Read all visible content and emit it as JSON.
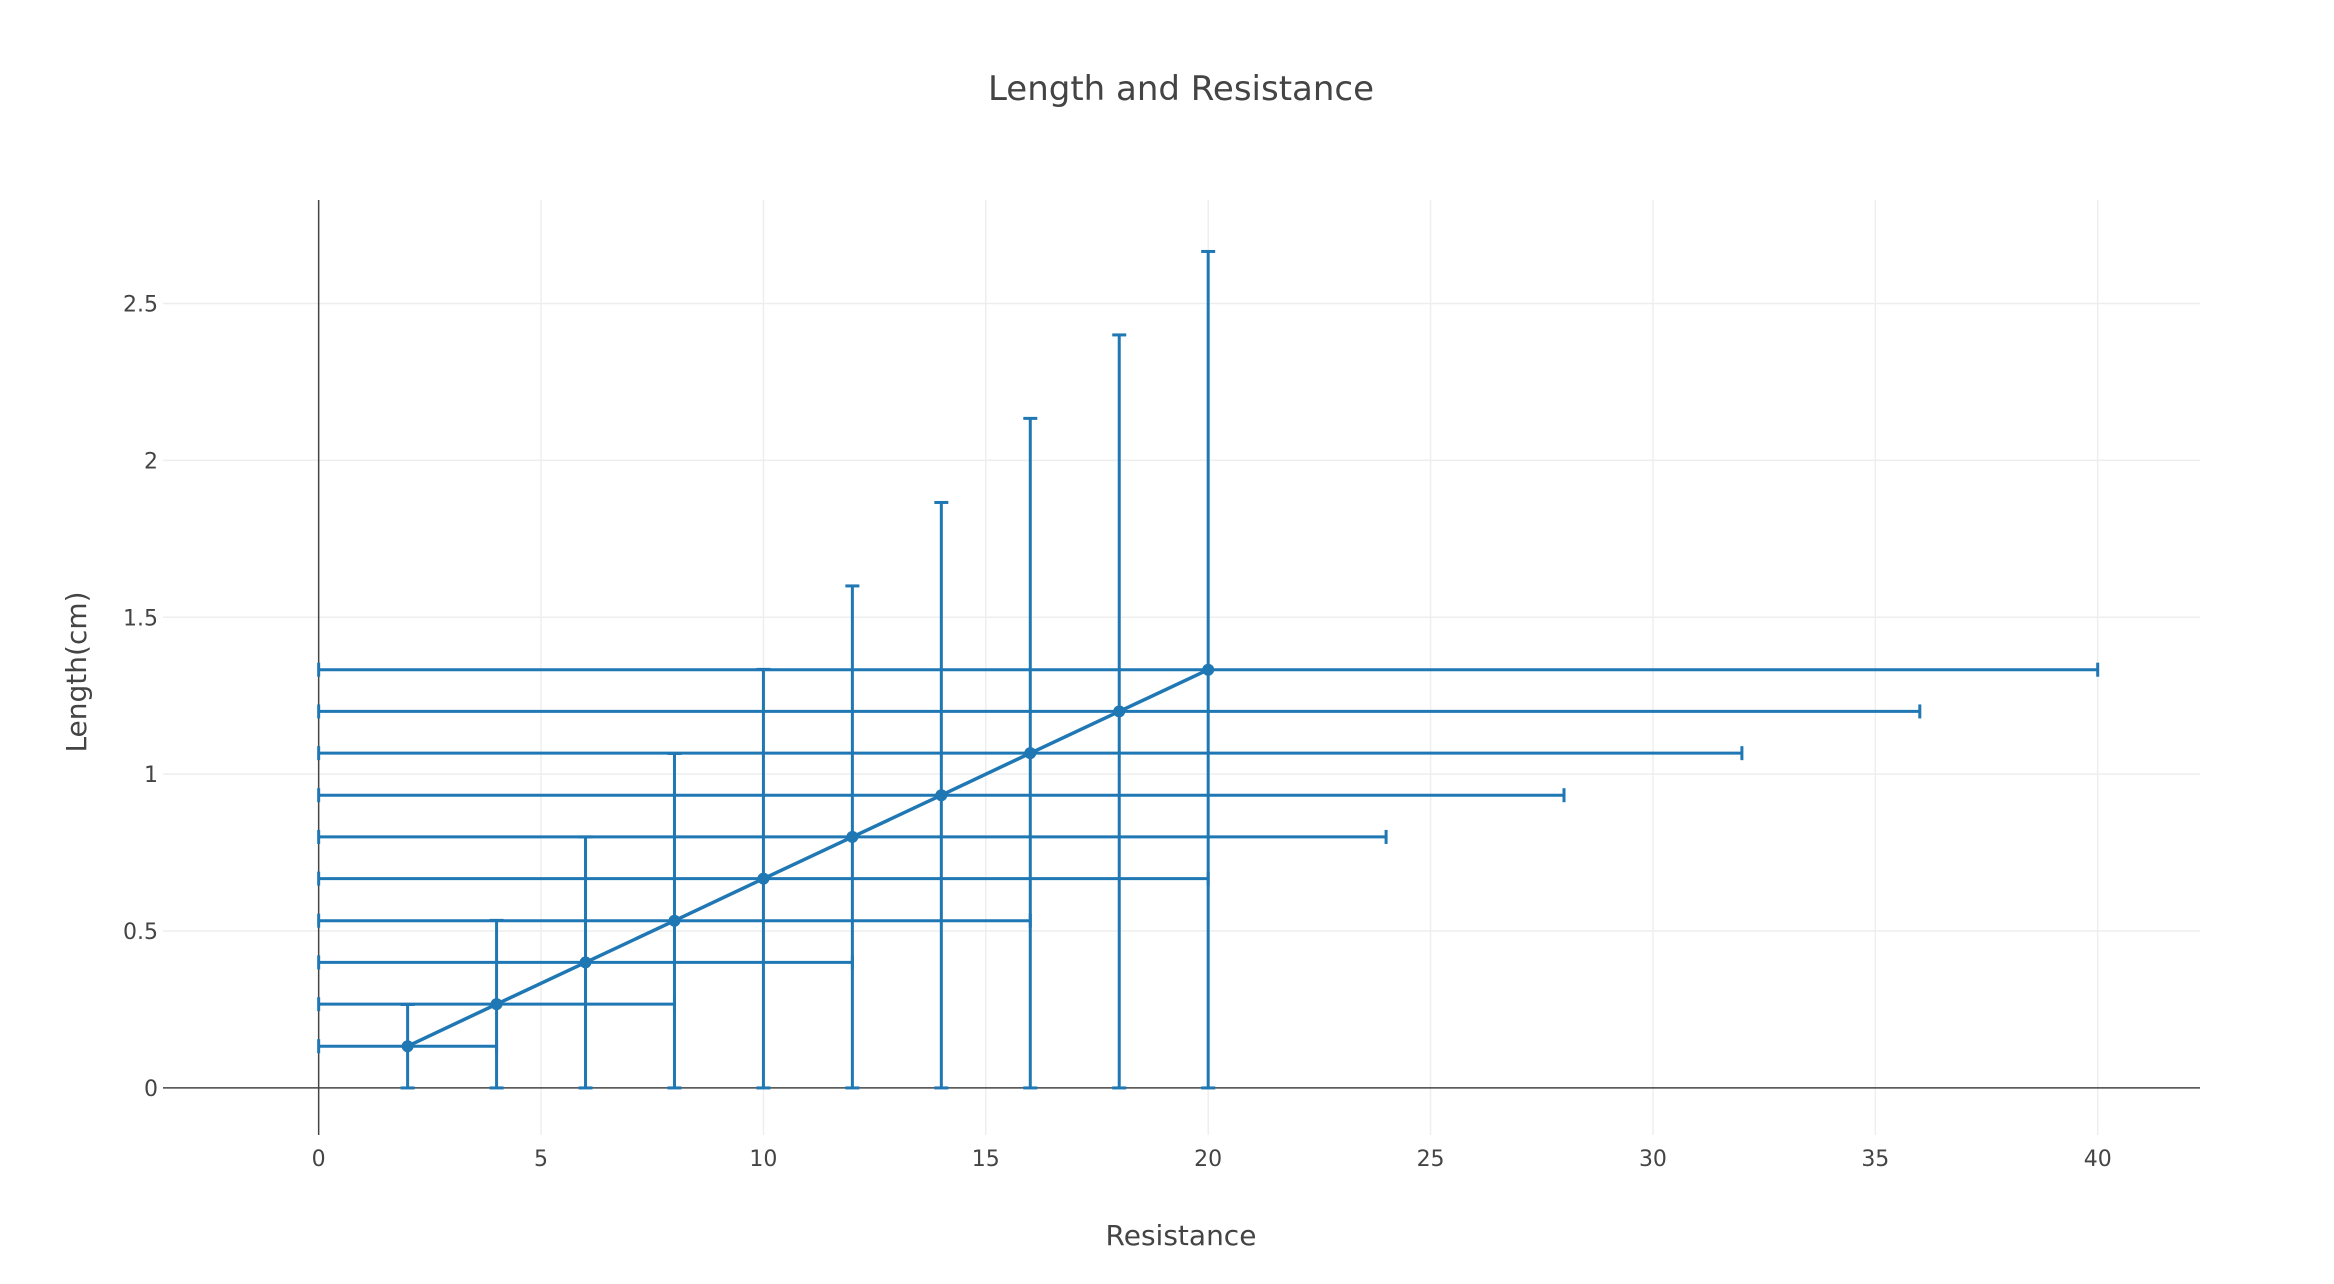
{
  "chart_data": {
    "type": "line",
    "title": "Length and Resistance",
    "xlabel": "Resistance",
    "ylabel": "Length(cm)",
    "xlim": [
      -3.5,
      42.3
    ],
    "ylim": [
      -0.15,
      2.83
    ],
    "xticks": [
      0,
      5,
      10,
      15,
      20,
      25,
      30,
      35,
      40
    ],
    "yticks": [
      0,
      0.5,
      1,
      1.5,
      2,
      2.5
    ],
    "xtick_labels": [
      "0",
      "5",
      "10",
      "15",
      "20",
      "25",
      "30",
      "35",
      "40"
    ],
    "ytick_labels": [
      "0",
      "0.5",
      "1",
      "1.5",
      "2",
      "2.5"
    ],
    "grid": true,
    "color": "#1f77b4",
    "series": [
      {
        "x": [
          2,
          4,
          6,
          8,
          10,
          12,
          14,
          16,
          18,
          20
        ],
        "y": [
          0.133,
          0.267,
          0.4,
          0.533,
          0.667,
          0.8,
          0.933,
          1.067,
          1.2,
          1.333
        ],
        "error_x": [
          2,
          4,
          6,
          8,
          10,
          12,
          14,
          16,
          18,
          20
        ],
        "error_y": [
          0.133,
          0.267,
          0.4,
          0.533,
          0.667,
          0.8,
          0.933,
          1.067,
          1.2,
          1.333
        ]
      }
    ]
  }
}
